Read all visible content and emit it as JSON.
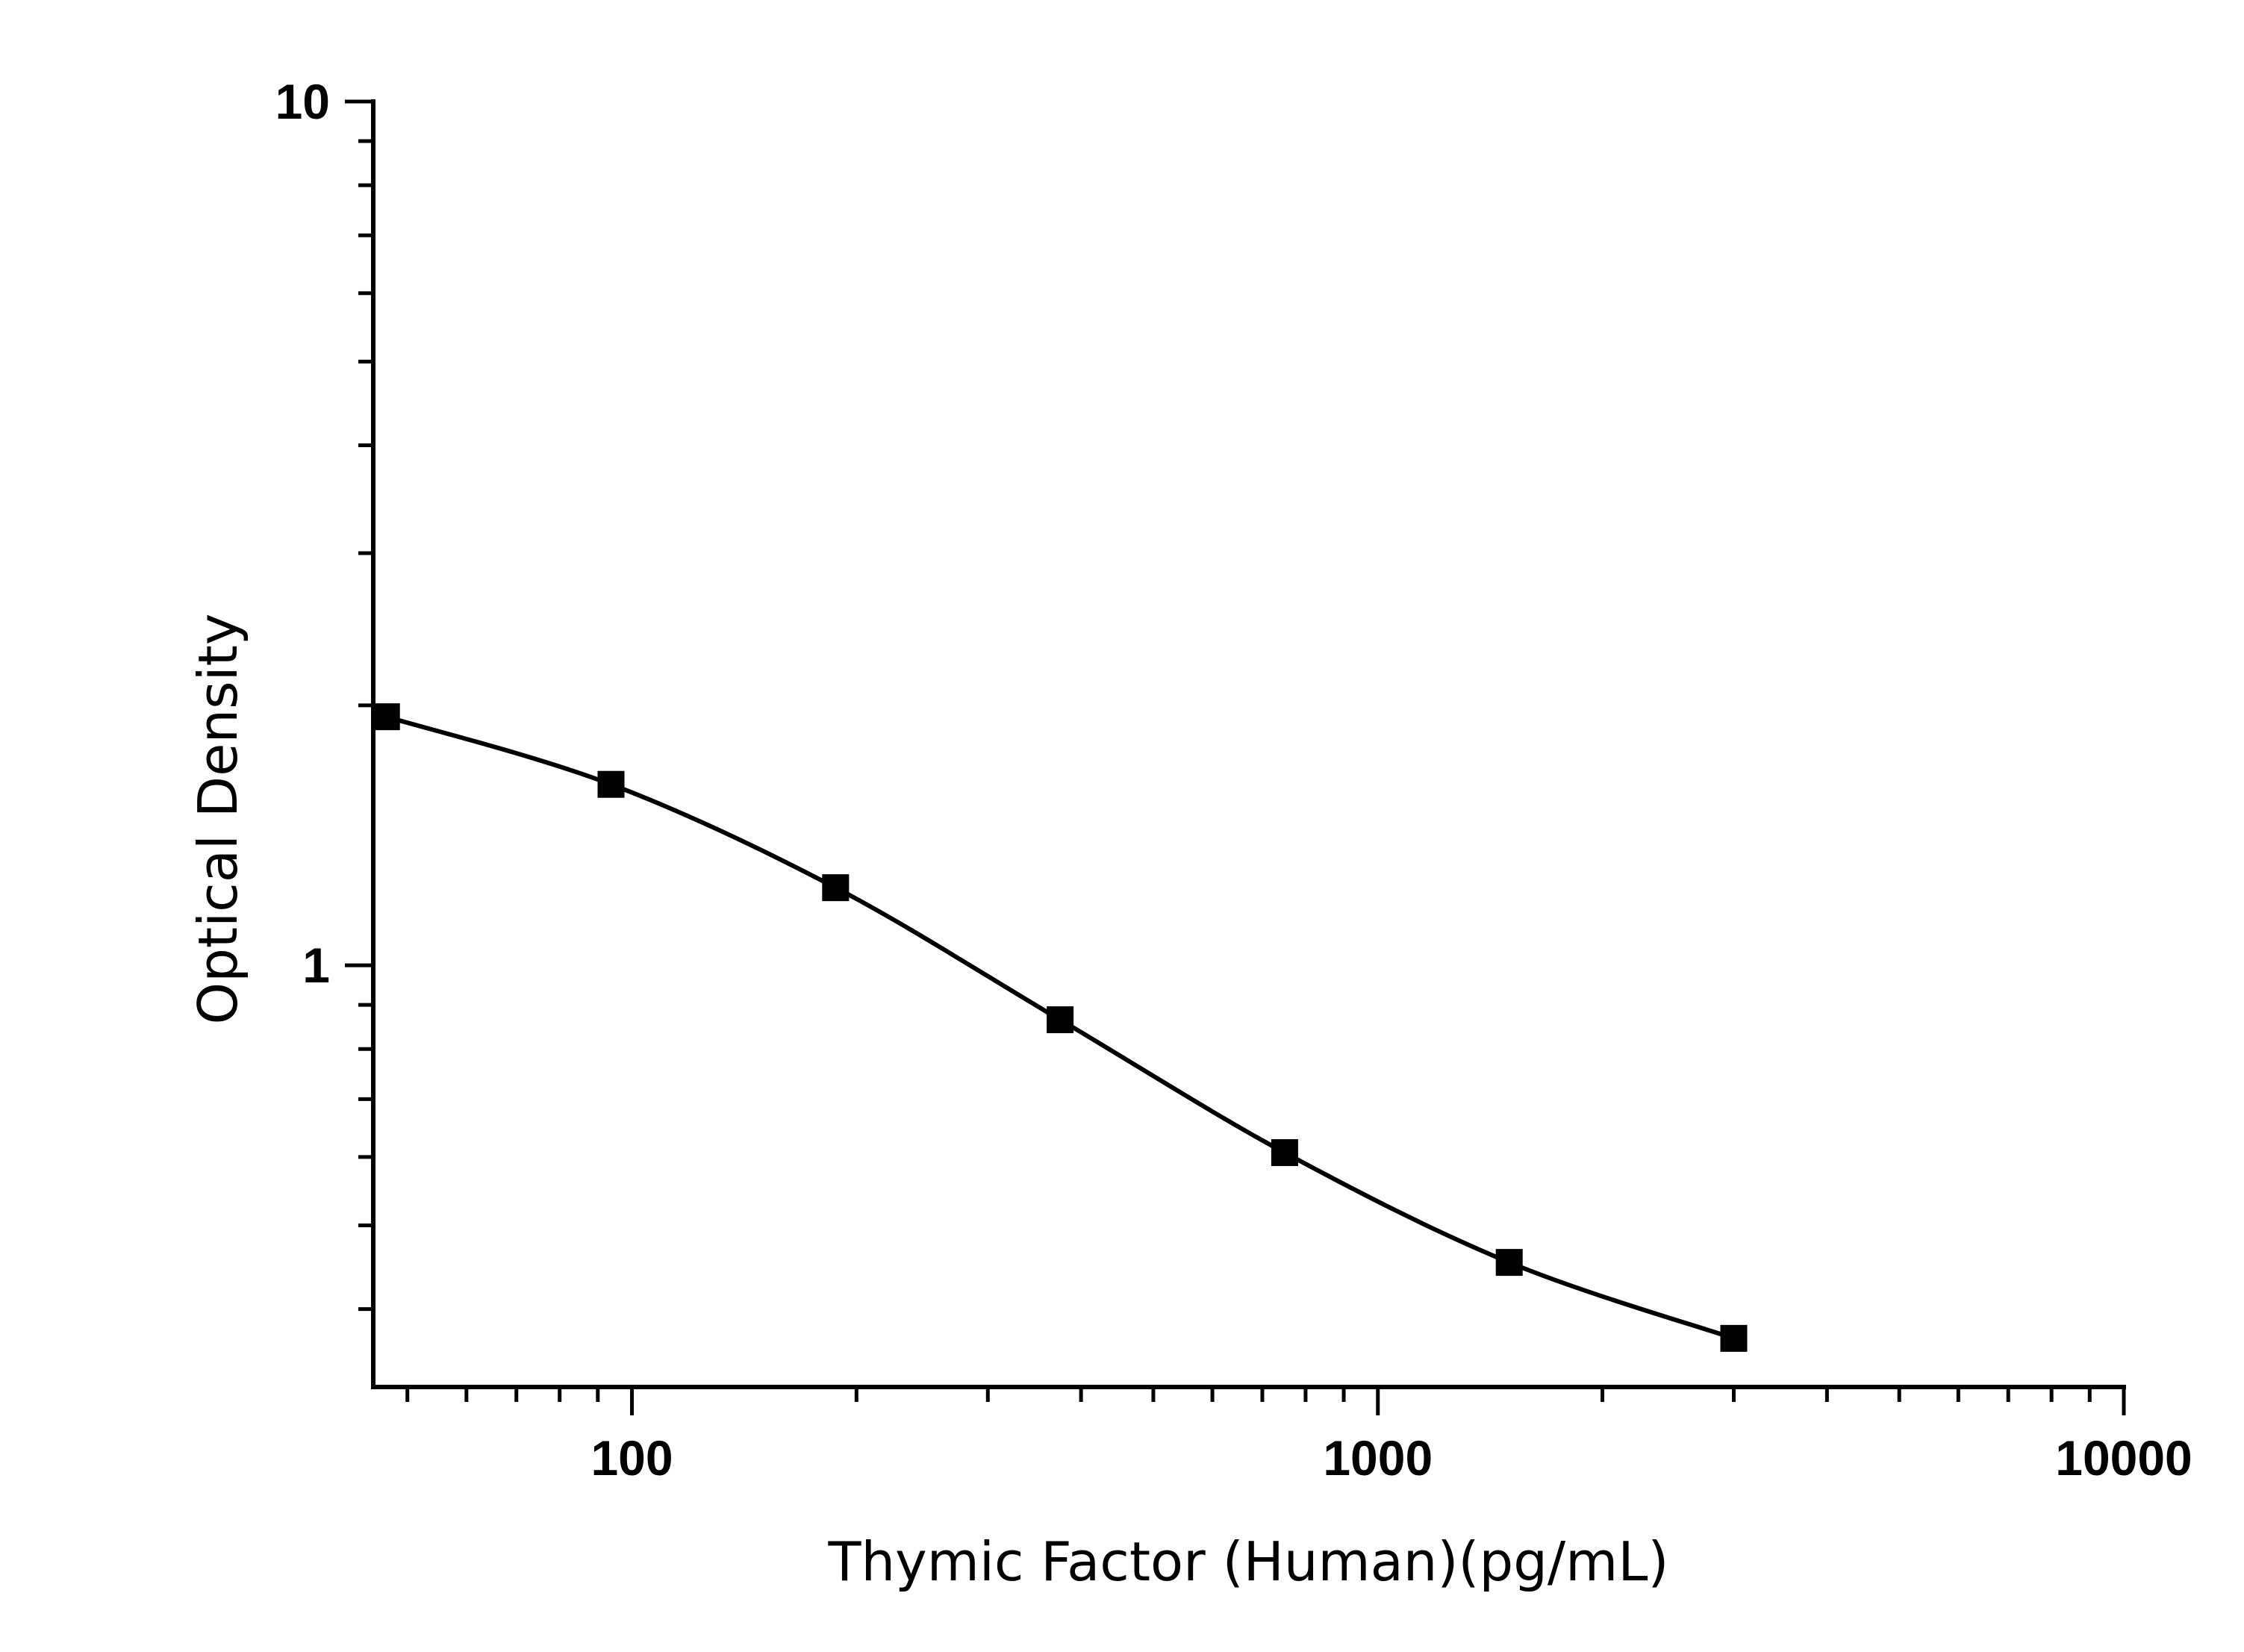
{
  "chart_data": {
    "type": "scatter",
    "title": "",
    "xlabel": "Thymic Factor (Human)(pg/mL)",
    "ylabel": "Optical Density",
    "x_scale": "log",
    "y_scale": "log",
    "xlim": [
      45,
      10000
    ],
    "ylim": [
      0.325,
      10
    ],
    "x_ticks": [
      {
        "value": 100,
        "label": "100"
      },
      {
        "value": 1000,
        "label": "1000"
      },
      {
        "value": 10000,
        "label": "10000"
      }
    ],
    "y_ticks": [
      {
        "value": 1,
        "label": "1"
      },
      {
        "value": 10,
        "label": "10"
      }
    ],
    "grid": false,
    "legend": "none",
    "marker": "square",
    "color": "#000000",
    "series": [
      {
        "x": [
          46.875,
          93.75,
          187.5,
          375,
          750,
          1500,
          3000
        ],
        "y": [
          1.94,
          1.62,
          1.23,
          0.865,
          0.607,
          0.453,
          0.37
        ],
        "fit_curve": true
      }
    ]
  }
}
